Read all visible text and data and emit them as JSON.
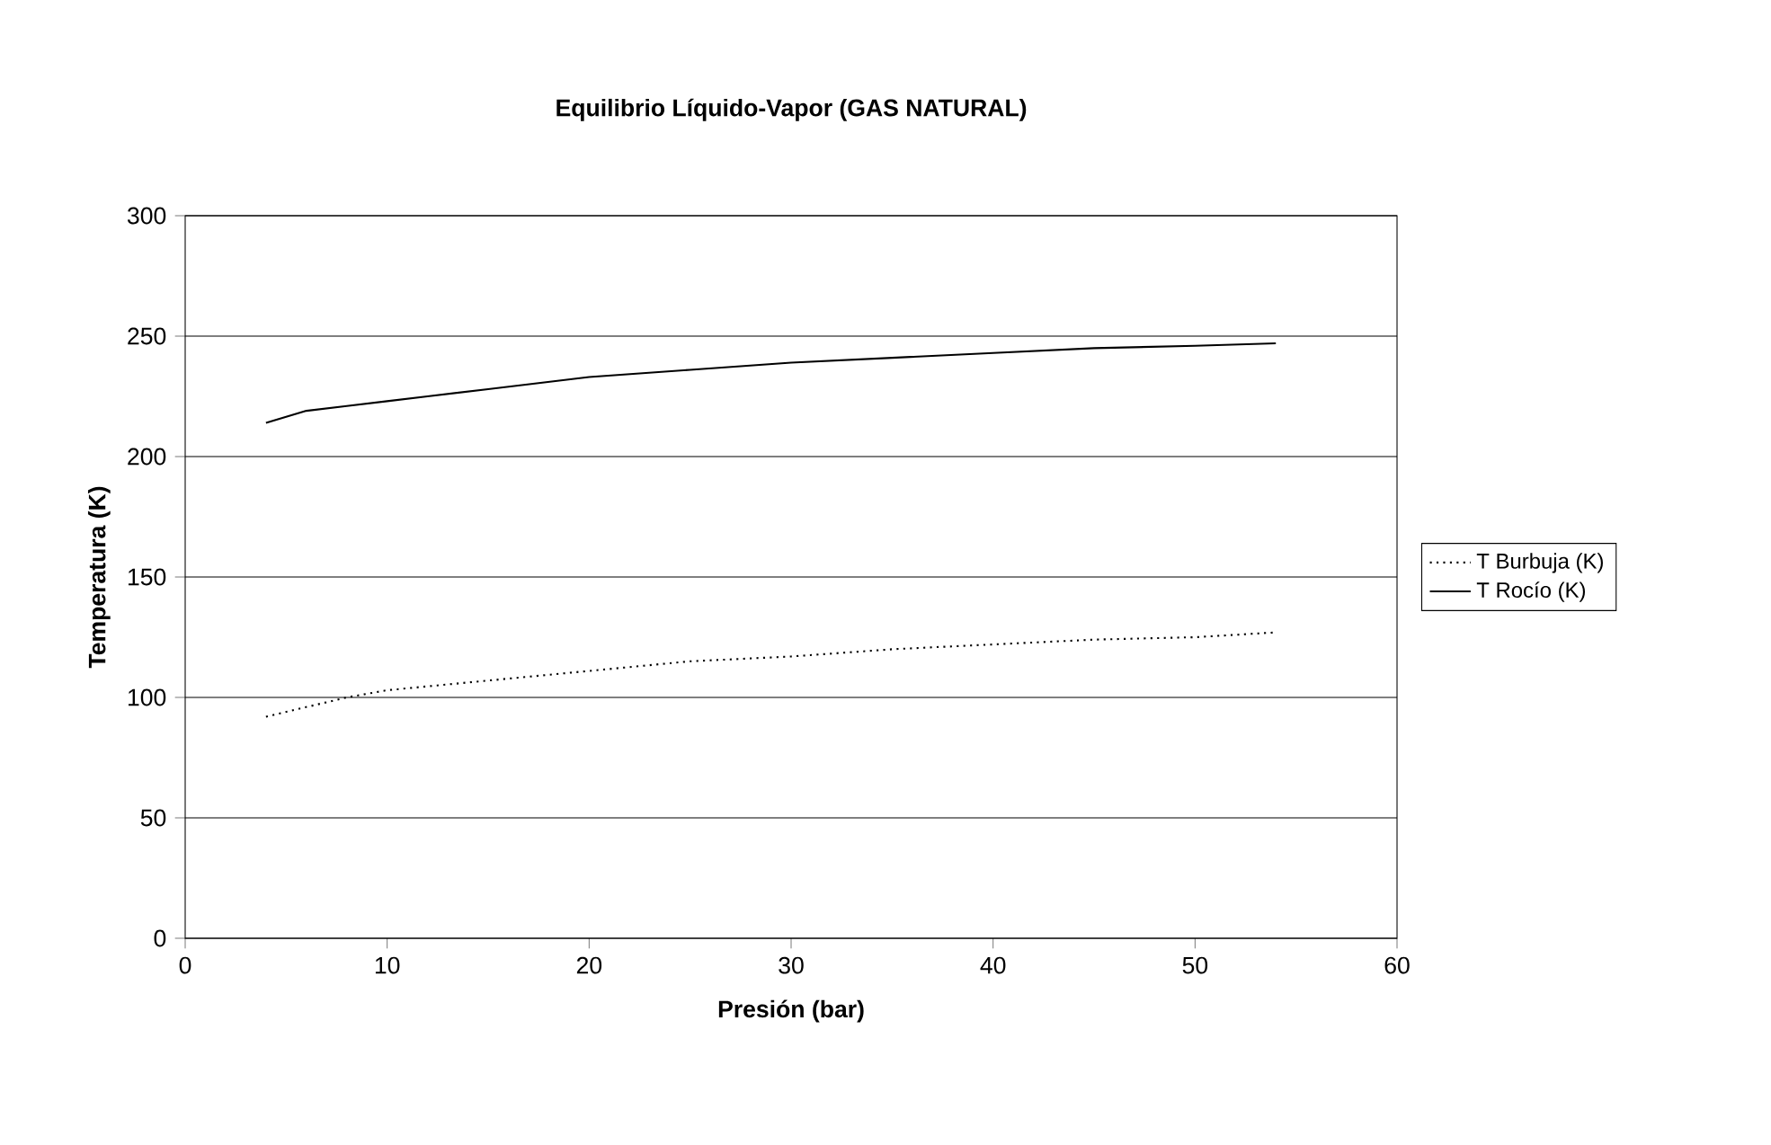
{
  "chart_data": {
    "type": "line",
    "title": "Equilibrio Líquido-Vapor (GAS NATURAL)",
    "xlabel": "Presión (bar)",
    "ylabel": "Temperatura (K)",
    "xlim": [
      0,
      60
    ],
    "xticks": [
      0,
      10,
      20,
      30,
      40,
      50,
      60
    ],
    "ylim": [
      0,
      300
    ],
    "yticks": [
      0,
      50,
      100,
      150,
      200,
      250,
      300
    ],
    "grid": "y",
    "legend": "right",
    "marker": "none",
    "series": [
      {
        "name": "T Burbuja (K)",
        "color": "#000000",
        "line_style": "dotted",
        "x": [
          4,
          6,
          8,
          10,
          15,
          20,
          25,
          30,
          35,
          40,
          45,
          50,
          54
        ],
        "values": [
          92,
          96,
          100,
          103,
          107,
          111,
          115,
          117,
          120,
          122,
          124,
          125,
          127
        ]
      },
      {
        "name": "T Rocío (K)",
        "color": "#000000",
        "line_style": "solid",
        "x": [
          4,
          6,
          8,
          10,
          12,
          15,
          20,
          25,
          30,
          35,
          40,
          45,
          50,
          54
        ],
        "values": [
          214,
          219,
          221,
          223,
          225,
          228,
          233,
          236,
          239,
          241,
          243,
          245,
          246,
          247
        ]
      }
    ]
  }
}
